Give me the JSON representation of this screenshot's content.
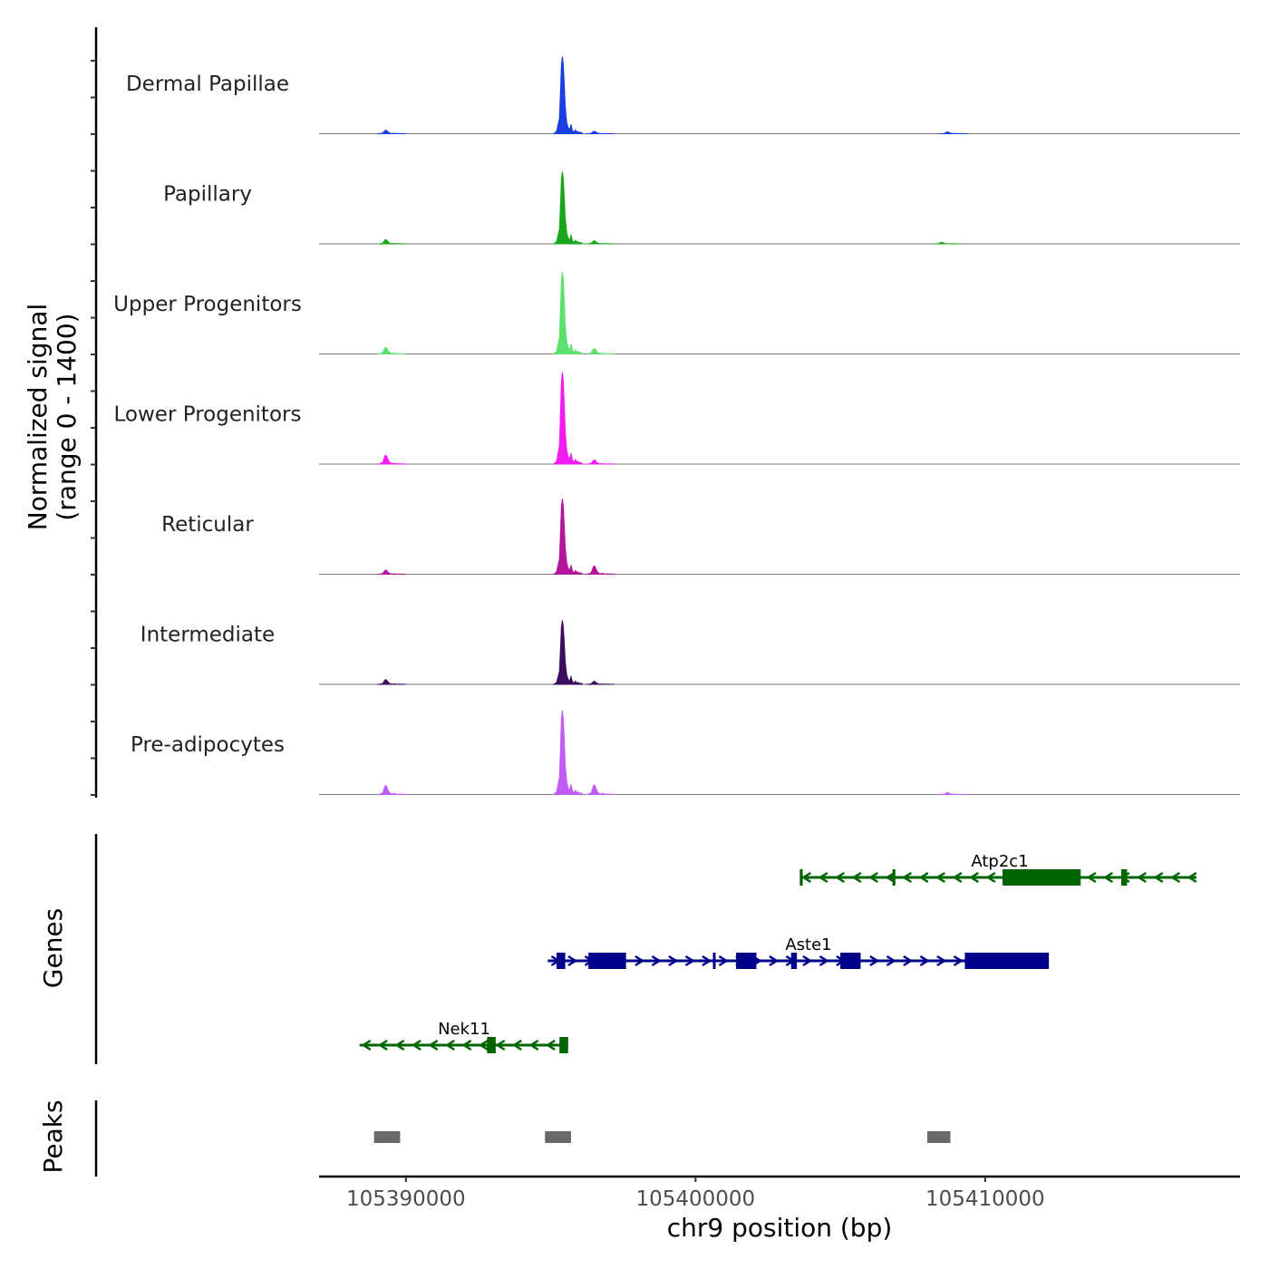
{
  "chart_data": {
    "type": "area",
    "title": "",
    "xlabel": "chr9 position (bp)",
    "ylabel_line1": "Normalized signal",
    "ylabel_line2": "(range 0 - 1400)",
    "ylim": [
      0,
      1400
    ],
    "xlim": [
      105387000,
      105418800
    ],
    "x_ticks": [
      105390000,
      105400000,
      105410000
    ],
    "x_tick_labels": [
      "105390000",
      "105400000",
      "105410000"
    ],
    "peak_shape": {
      "offsets_bp": [
        -300,
        -200,
        -100,
        -60,
        -30,
        0,
        30,
        60,
        100,
        150,
        200,
        250,
        300,
        350,
        400,
        450,
        500,
        550,
        600,
        650,
        700
      ],
      "rel": [
        0,
        0.03,
        0.2,
        0.6,
        0.9,
        1.0,
        0.92,
        0.7,
        0.35,
        0.15,
        0.08,
        0.05,
        0.12,
        0.04,
        0.02,
        0.05,
        0.02,
        0.03,
        0.01,
        0.02,
        0
      ]
    },
    "tracks": [
      {
        "name": "Dermal Papillae",
        "color": "#1a3fe0",
        "peaks": [
          {
            "pos": 105395400,
            "height": 1300
          },
          {
            "pos": 105389300,
            "height": 60
          },
          {
            "pos": 105408700,
            "height": 30
          },
          {
            "pos": 105396500,
            "height": 40
          }
        ]
      },
      {
        "name": "Papillary",
        "color": "#1aa61a",
        "peaks": [
          {
            "pos": 105395400,
            "height": 1220
          },
          {
            "pos": 105389300,
            "height": 70
          },
          {
            "pos": 105408500,
            "height": 25
          },
          {
            "pos": 105396500,
            "height": 50
          }
        ]
      },
      {
        "name": "Upper Progenitors",
        "color": "#5ee06e",
        "peaks": [
          {
            "pos": 105395400,
            "height": 1380
          },
          {
            "pos": 105389300,
            "height": 110
          },
          {
            "pos": 105396500,
            "height": 90
          }
        ]
      },
      {
        "name": "Lower Progenitors",
        "color": "#f21cf2",
        "peaks": [
          {
            "pos": 105395400,
            "height": 1550
          },
          {
            "pos": 105389300,
            "height": 150
          },
          {
            "pos": 105396500,
            "height": 70
          }
        ]
      },
      {
        "name": "Reticular",
        "color": "#b5159b",
        "peaks": [
          {
            "pos": 105395400,
            "height": 1270
          },
          {
            "pos": 105389300,
            "height": 70
          },
          {
            "pos": 105396500,
            "height": 140
          }
        ]
      },
      {
        "name": "Intermediate",
        "color": "#3b0d5c",
        "peaks": [
          {
            "pos": 105395400,
            "height": 1080
          },
          {
            "pos": 105389300,
            "height": 80
          },
          {
            "pos": 105396500,
            "height": 50
          }
        ]
      },
      {
        "name": "Pre-adipocytes",
        "color": "#c05cf5",
        "peaks": [
          {
            "pos": 105395400,
            "height": 1420
          },
          {
            "pos": 105389300,
            "height": 150
          },
          {
            "pos": 105396500,
            "height": 160
          },
          {
            "pos": 105408700,
            "height": 30
          }
        ]
      }
    ],
    "genes_label": "Genes",
    "genes": [
      {
        "name": "Atp2c1",
        "strand": "-",
        "color": "#006400",
        "start": 105403600,
        "end": 105417300,
        "exons": [
          [
            105410600,
            105413300
          ],
          [
            105414700,
            105414900
          ],
          [
            105403600,
            105403700
          ],
          [
            105406800,
            105406900
          ]
        ]
      },
      {
        "name": "Aste1",
        "strand": "+",
        "color": "#00008b",
        "start": 105394900,
        "end": 105412200,
        "exons": [
          [
            105395200,
            105395500
          ],
          [
            105396300,
            105397600
          ],
          [
            105401400,
            105402100
          ],
          [
            105403300,
            105403500
          ],
          [
            105405000,
            105405700
          ],
          [
            105409300,
            105412200
          ],
          [
            105400600,
            105400650
          ]
        ]
      },
      {
        "name": "Nek11",
        "strand": "-",
        "color": "#006400",
        "start": 105388400,
        "end": 105395600,
        "exons": [
          [
            105392800,
            105393100
          ],
          [
            105395300,
            105395600
          ]
        ]
      }
    ],
    "peaks_label": "Peaks",
    "peak_regions": [
      [
        105388900,
        105389800
      ],
      [
        105394800,
        105395700
      ],
      [
        105408000,
        105408800
      ]
    ],
    "peak_region_color": "#696969"
  }
}
